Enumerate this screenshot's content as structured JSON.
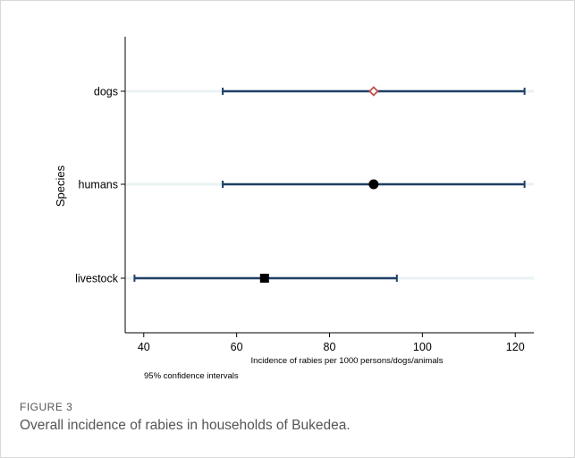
{
  "chart_data": {
    "type": "scatter",
    "subtype": "dot-plot with horizontal confidence intervals",
    "title": "",
    "xlabel": "Incidence of rabies per 1000 persons/dogs/animals",
    "ylabel": "Species",
    "note": "95% confidence intervals",
    "xlim": [
      36,
      124
    ],
    "xticks": [
      40,
      60,
      80,
      100,
      120
    ],
    "categories": [
      "dogs",
      "humans",
      "livestock"
    ],
    "points": [
      {
        "category": "dogs",
        "value": 89.5,
        "ci_low": 57,
        "ci_high": 122,
        "marker": "diamond",
        "marker_color": "#c0504d"
      },
      {
        "category": "humans",
        "value": 89.5,
        "ci_low": 57,
        "ci_high": 122,
        "marker": "circle",
        "marker_color": "#000000"
      },
      {
        "category": "livestock",
        "value": 66,
        "ci_low": 38,
        "ci_high": 94.5,
        "marker": "square",
        "marker_color": "#000000"
      }
    ],
    "grid": "horizontal",
    "colors": {
      "ci_line": "#1f3f66",
      "gridline": "#eaf2f3",
      "axis": "#000000"
    }
  },
  "figure": {
    "label": "FIGURE 3",
    "caption": "Overall incidence of rabies in households of Bukedea."
  }
}
